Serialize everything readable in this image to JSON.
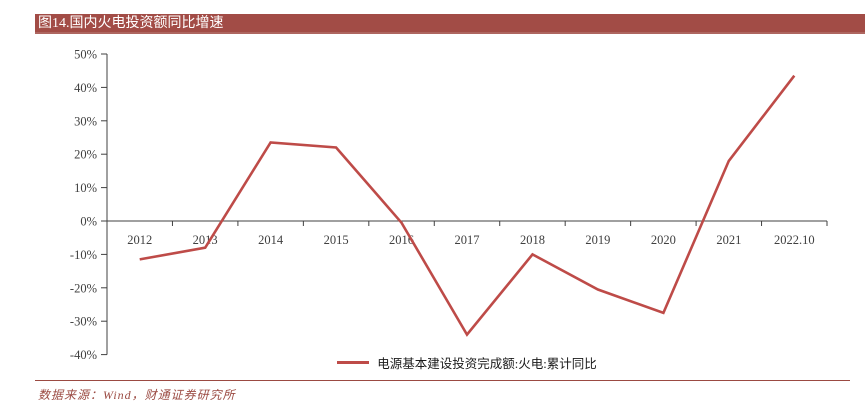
{
  "header": {
    "title": "图14.国内火电投资额同比增速"
  },
  "legend": {
    "label": "电源基本建设投资完成额:火电:累计同比"
  },
  "footer": {
    "source": "数据来源：Wind，财通证券研究所"
  },
  "colors": {
    "accent_bar": "#A24C46",
    "series_line": "#BE4B48",
    "axis": "#404040",
    "footer_text": "#9B4A42"
  },
  "chart_data": {
    "type": "line",
    "title": "图14.国内火电投资额同比增速",
    "categories": [
      "2012",
      "2013",
      "2014",
      "2015",
      "2016",
      "2017",
      "2018",
      "2019",
      "2020",
      "2021",
      "2022.10"
    ],
    "series": [
      {
        "name": "电源基本建设投资完成额:火电:累计同比",
        "values": [
          -11.5,
          -8,
          23.5,
          22,
          -0.5,
          -34,
          -10,
          -20.5,
          -27.5,
          18,
          43.5
        ]
      }
    ],
    "xlabel": "",
    "ylabel": "",
    "ylim": [
      -40,
      50
    ],
    "y_tick_step": 10,
    "y_tick_labels": [
      "50%",
      "40%",
      "30%",
      "20%",
      "10%",
      "0%",
      "-10%",
      "-20%",
      "-30%",
      "-40%"
    ],
    "grid": false,
    "legend_position": "bottom-center"
  }
}
